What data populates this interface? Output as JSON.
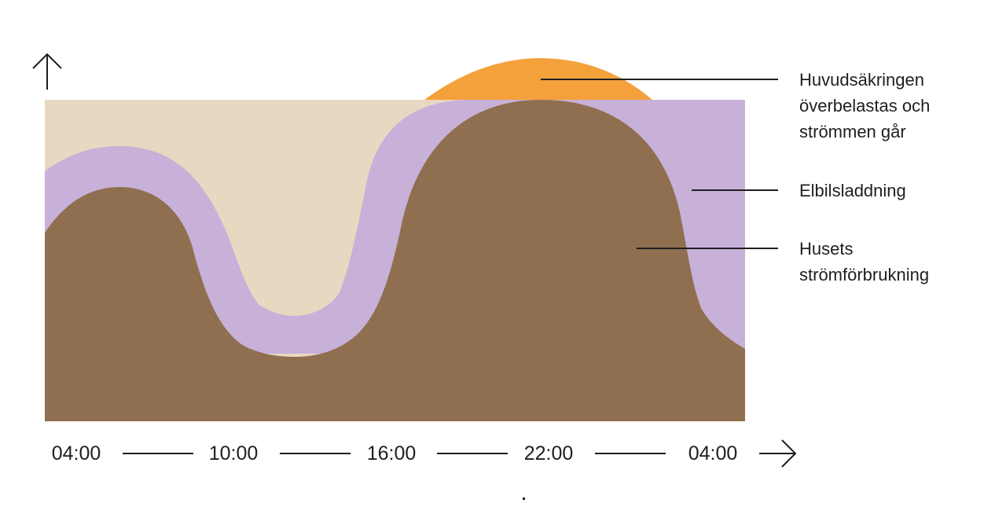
{
  "colors": {
    "capacity": "#e8d8c1",
    "ev_charging": "#c7b1d8",
    "overload": "#f4a13b",
    "house": "#8f6f4f",
    "ink": "#1f1f1f"
  },
  "annotations": {
    "overload": [
      "Huvudsäkringen",
      "överbelastas och",
      "strömmen går"
    ],
    "ev_charging": "Elbilsladdning",
    "house": [
      "Husets",
      "strömförbrukning"
    ]
  },
  "time_axis": {
    "ticks": [
      "04:00",
      "10:00",
      "16:00",
      "22:00",
      "04:00"
    ]
  },
  "icons": {
    "y_axis": "arrow-up-icon",
    "x_axis": "arrow-right-icon"
  }
}
